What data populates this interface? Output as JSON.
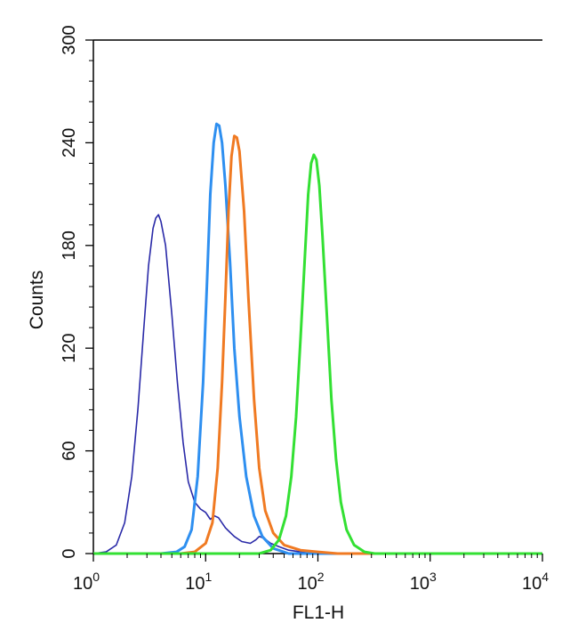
{
  "chart_data": {
    "type": "line",
    "xlabel": "FL1-H",
    "ylabel": "Counts",
    "x_scale": "log",
    "xlim": [
      1,
      10000
    ],
    "ylim": [
      0,
      300
    ],
    "grid": false,
    "legend": "none",
    "x_ticks": [
      {
        "base": "10",
        "exp": "0",
        "value": 1
      },
      {
        "base": "10",
        "exp": "1",
        "value": 10
      },
      {
        "base": "10",
        "exp": "2",
        "value": 100
      },
      {
        "base": "10",
        "exp": "3",
        "value": 1000
      },
      {
        "base": "10",
        "exp": "4",
        "value": 10000
      }
    ],
    "y_ticks": [
      {
        "label": "0",
        "value": 0
      },
      {
        "label": "60",
        "value": 60
      },
      {
        "label": "120",
        "value": 120
      },
      {
        "label": "180",
        "value": 180
      },
      {
        "label": "240",
        "value": 240
      },
      {
        "label": "300",
        "value": 300
      }
    ],
    "series": [
      {
        "color": "#2a2aa8",
        "stroke_width": 1.6,
        "points": [
          [
            1,
            0
          ],
          [
            1.3,
            1
          ],
          [
            1.6,
            5
          ],
          [
            1.9,
            18
          ],
          [
            2.2,
            45
          ],
          [
            2.5,
            85
          ],
          [
            2.8,
            130
          ],
          [
            3.1,
            168
          ],
          [
            3.4,
            190
          ],
          [
            3.6,
            196
          ],
          [
            3.8,
            198
          ],
          [
            4.0,
            194
          ],
          [
            4.4,
            180
          ],
          [
            5.0,
            140
          ],
          [
            5.6,
            100
          ],
          [
            6.3,
            65
          ],
          [
            7.0,
            42
          ],
          [
            8.0,
            30
          ],
          [
            9.0,
            26
          ],
          [
            10,
            24
          ],
          [
            11,
            20
          ],
          [
            12,
            22
          ],
          [
            13,
            21
          ],
          [
            15,
            15
          ],
          [
            18,
            10
          ],
          [
            21,
            7
          ],
          [
            25,
            6
          ],
          [
            28,
            8
          ],
          [
            30,
            10
          ],
          [
            33,
            9
          ],
          [
            38,
            6
          ],
          [
            45,
            4
          ],
          [
            55,
            2
          ],
          [
            70,
            1
          ],
          [
            90,
            0
          ],
          [
            10000,
            0
          ]
        ]
      },
      {
        "color": "#2e8ff0",
        "stroke_width": 3,
        "points": [
          [
            1,
            0
          ],
          [
            4,
            0
          ],
          [
            5.5,
            1
          ],
          [
            6.5,
            4
          ],
          [
            7.5,
            14
          ],
          [
            8.5,
            45
          ],
          [
            9.5,
            100
          ],
          [
            10.3,
            160
          ],
          [
            11,
            210
          ],
          [
            11.8,
            240
          ],
          [
            12.5,
            251
          ],
          [
            13.2,
            250
          ],
          [
            14,
            240
          ],
          [
            15,
            215
          ],
          [
            16.5,
            170
          ],
          [
            18,
            120
          ],
          [
            20,
            80
          ],
          [
            23,
            45
          ],
          [
            27,
            22
          ],
          [
            32,
            10
          ],
          [
            40,
            3
          ],
          [
            55,
            0
          ],
          [
            10000,
            0
          ]
        ]
      },
      {
        "color": "#f07a22",
        "stroke_width": 3,
        "points": [
          [
            1,
            0
          ],
          [
            6,
            0
          ],
          [
            8,
            1
          ],
          [
            10,
            6
          ],
          [
            11.5,
            18
          ],
          [
            12.8,
            50
          ],
          [
            14,
            100
          ],
          [
            15,
            150
          ],
          [
            16,
            200
          ],
          [
            17,
            232
          ],
          [
            18,
            244
          ],
          [
            19,
            243
          ],
          [
            20,
            235
          ],
          [
            22,
            200
          ],
          [
            24,
            150
          ],
          [
            27,
            90
          ],
          [
            30,
            50
          ],
          [
            34,
            25
          ],
          [
            40,
            12
          ],
          [
            50,
            5
          ],
          [
            70,
            2
          ],
          [
            100,
            1
          ],
          [
            150,
            0
          ],
          [
            10000,
            0
          ]
        ]
      },
      {
        "color": "#33e033",
        "stroke_width": 3,
        "points": [
          [
            1,
            0
          ],
          [
            30,
            0
          ],
          [
            38,
            2
          ],
          [
            45,
            8
          ],
          [
            52,
            22
          ],
          [
            58,
            45
          ],
          [
            64,
            80
          ],
          [
            70,
            125
          ],
          [
            76,
            170
          ],
          [
            82,
            210
          ],
          [
            87,
            228
          ],
          [
            92,
            233
          ],
          [
            97,
            230
          ],
          [
            103,
            215
          ],
          [
            110,
            185
          ],
          [
            120,
            140
          ],
          [
            132,
            90
          ],
          [
            145,
            55
          ],
          [
            160,
            30
          ],
          [
            180,
            14
          ],
          [
            210,
            5
          ],
          [
            260,
            1
          ],
          [
            320,
            0
          ],
          [
            10000,
            0
          ]
        ]
      }
    ]
  }
}
